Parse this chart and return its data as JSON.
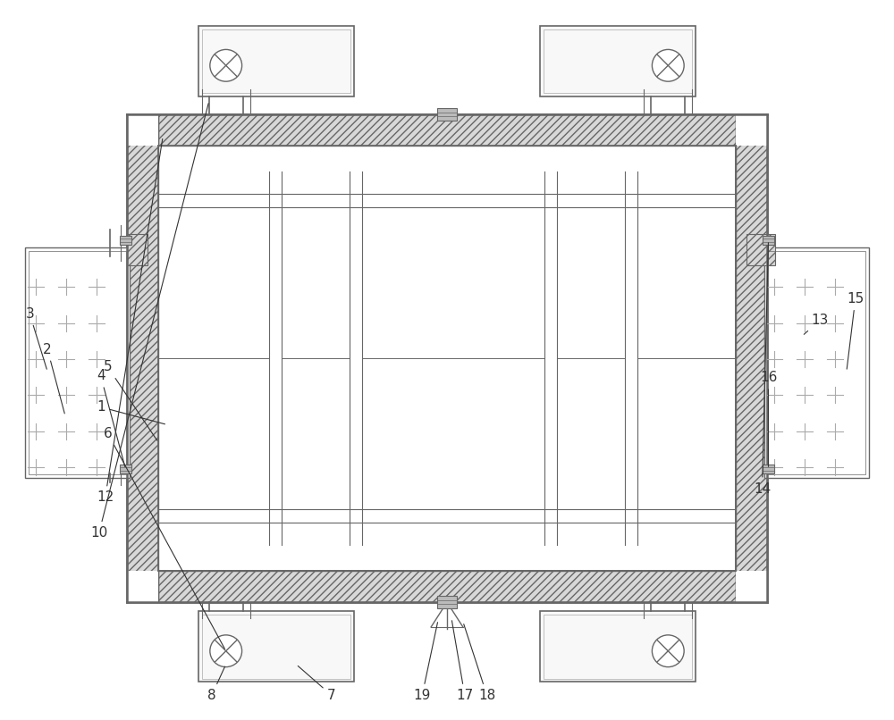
{
  "bg_color": "#ffffff",
  "lc": "#666666",
  "lc_thin": "#888888",
  "hatch_fc": "#d8d8d8",
  "plus_color": "#aaaaaa",
  "label_color": "#333333",
  "figsize": [
    10.0,
    8.06
  ],
  "dpi": 100
}
